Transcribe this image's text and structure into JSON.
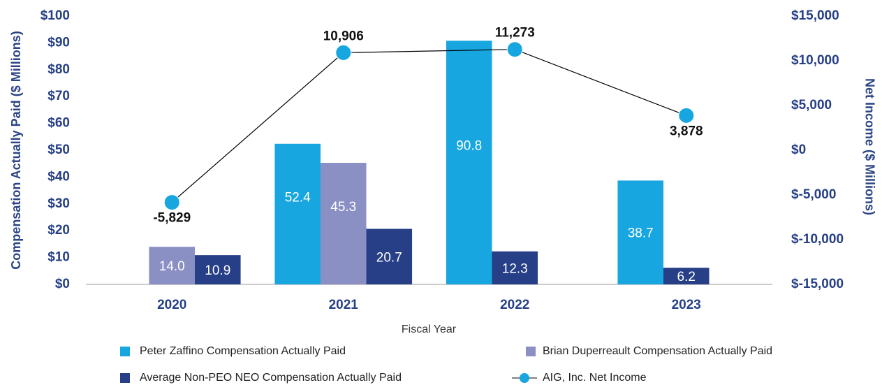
{
  "chart_data": {
    "type": "bar",
    "x_label": "Fiscal Year",
    "y_label": "Compensation Actually Paid ($ Millions)",
    "y2_label": "Net Income ($ Millions)",
    "categories": [
      "2020",
      "2021",
      "2022",
      "2023"
    ],
    "series": [
      {
        "name": "Peter Zaffino Compensation Actually Paid",
        "color": "#17a6e0",
        "values": [
          null,
          52.4,
          90.8,
          38.7
        ],
        "value_labels": [
          null,
          "52.4",
          "90.8",
          "38.7"
        ]
      },
      {
        "name": "Brian Duperreault Compensation Actually Paid",
        "color": "#8a8fc4",
        "values": [
          14.0,
          45.3,
          null,
          null
        ],
        "value_labels": [
          "14.0",
          "45.3",
          null,
          null
        ]
      },
      {
        "name": "Average Non-PEO NEO Compensation Actually Paid",
        "color": "#263f86",
        "values": [
          10.9,
          20.7,
          12.3,
          6.2
        ],
        "value_labels": [
          "10.9",
          "20.7",
          "12.3",
          "6.2"
        ]
      },
      {
        "name": "AIG, Inc. Net Income",
        "type": "line",
        "axis": "y2",
        "color": "#17a6e0",
        "line_color": "#000000",
        "values": [
          -5829,
          10906,
          11273,
          3878
        ],
        "value_labels": [
          "-5,829",
          "10,906",
          "11,273",
          "3,878"
        ]
      }
    ],
    "ylim": [
      0,
      100
    ],
    "yticks": [
      {
        "value": 0,
        "label": "$0"
      },
      {
        "value": 10,
        "label": "$10"
      },
      {
        "value": 20,
        "label": "$20"
      },
      {
        "value": 30,
        "label": "$30"
      },
      {
        "value": 40,
        "label": "$40"
      },
      {
        "value": 50,
        "label": "$50"
      },
      {
        "value": 60,
        "label": "$60"
      },
      {
        "value": 70,
        "label": "$70"
      },
      {
        "value": 80,
        "label": "$80"
      },
      {
        "value": 90,
        "label": "$90"
      },
      {
        "value": 100,
        "label": "$100"
      }
    ],
    "y2lim": [
      -15000,
      15000
    ],
    "y2ticks": [
      {
        "value": -15000,
        "label": "$-15,000"
      },
      {
        "value": -10000,
        "label": "$-10,000"
      },
      {
        "value": -5000,
        "label": "$-5,000"
      },
      {
        "value": 0,
        "label": "$0"
      },
      {
        "value": 5000,
        "label": "$5,000"
      },
      {
        "value": 10000,
        "label": "$10,000"
      },
      {
        "value": 15000,
        "label": "$15,000"
      }
    ],
    "grid": false
  }
}
